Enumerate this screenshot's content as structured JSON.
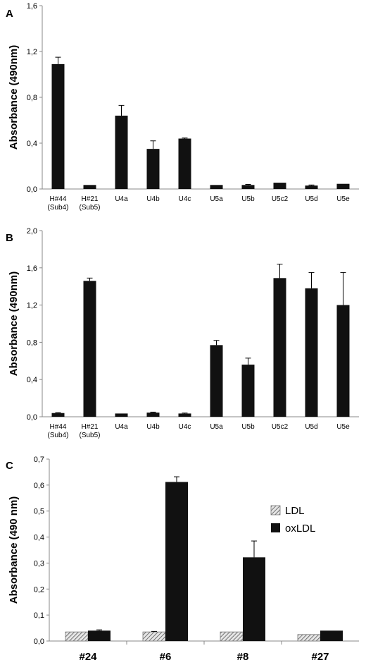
{
  "chart_data": [
    {
      "panel": "A",
      "type": "bar",
      "ylabel": "Absorbance (490nm)",
      "ylim": [
        0,
        1.6
      ],
      "yticks": [
        "0,0",
        "0,4",
        "0,8",
        "1,2",
        "1,6"
      ],
      "categories": [
        [
          "H#44",
          "(Sub4)"
        ],
        [
          "H#21",
          "(Sub5)"
        ],
        [
          "U4a"
        ],
        [
          "U4b"
        ],
        [
          "U4c"
        ],
        [
          "U5a"
        ],
        [
          "U5b"
        ],
        [
          "U5c2"
        ],
        [
          "U5d"
        ],
        [
          "U5e"
        ]
      ],
      "values": [
        1.09,
        0.035,
        0.64,
        0.35,
        0.44,
        0.035,
        0.035,
        0.055,
        0.03,
        0.045
      ],
      "errors": [
        0.06,
        0,
        0.09,
        0.07,
        0.005,
        0,
        0.005,
        0,
        0.005,
        0
      ],
      "color": "#111111"
    },
    {
      "panel": "B",
      "type": "bar",
      "ylabel": "Absorbance (490nm)",
      "ylim": [
        0,
        2.0
      ],
      "yticks": [
        "0,0",
        "0,4",
        "0,8",
        "1,2",
        "1,6",
        "2,0"
      ],
      "categories": [
        [
          "H#44",
          "(Sub4)"
        ],
        [
          "H#21",
          "(Sub5)"
        ],
        [
          "U4a"
        ],
        [
          "U4b"
        ],
        [
          "U4c"
        ],
        [
          "U5a"
        ],
        [
          "U5b"
        ],
        [
          "U5c2"
        ],
        [
          "U5d"
        ],
        [
          "U5e"
        ]
      ],
      "values": [
        0.04,
        1.46,
        0.035,
        0.045,
        0.035,
        0.77,
        0.56,
        1.49,
        1.38,
        1.2
      ],
      "errors": [
        0.005,
        0.03,
        0,
        0.005,
        0.005,
        0.05,
        0.07,
        0.15,
        0.17,
        0.35
      ],
      "color": "#111111"
    },
    {
      "panel": "C",
      "type": "bar",
      "ylabel": "Absorbance (490 nm)",
      "ylim": [
        0,
        0.7
      ],
      "yticks": [
        "0,0",
        "0,1",
        "0,2",
        "0,3",
        "0,4",
        "0,5",
        "0,6",
        "0,7"
      ],
      "categories": [
        "#24",
        "#6",
        "#8",
        "#27"
      ],
      "series": [
        {
          "name": "LDL",
          "values": [
            0.035,
            0.035,
            0.035,
            0.025
          ],
          "errors": [
            0,
            0.002,
            0,
            0
          ],
          "pattern": "hatched"
        },
        {
          "name": "oxLDL",
          "values": [
            0.04,
            0.612,
            0.322,
            0.04
          ],
          "errors": [
            0.003,
            0.02,
            0.063,
            0
          ],
          "color": "#111111"
        }
      ],
      "legend": "top-right"
    }
  ]
}
